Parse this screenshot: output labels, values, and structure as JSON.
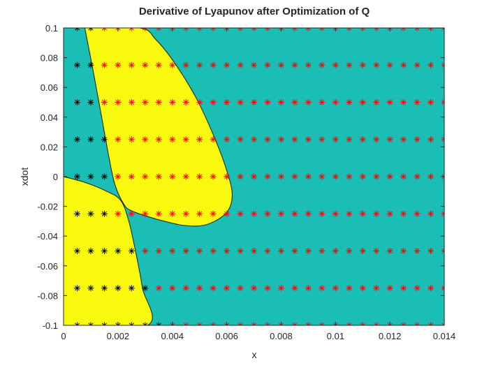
{
  "chart_data": {
    "type": "scatter",
    "title": "Derivative of Lyapunov after Optimization of Q",
    "xlabel": "x",
    "ylabel": "xdot",
    "xlim": [
      0,
      0.014
    ],
    "ylim": [
      -0.1,
      0.1
    ],
    "xticks": [
      "0",
      "0.002",
      "0.004",
      "0.006",
      "0.008",
      "0.01",
      "0.012",
      "0.014"
    ],
    "yticks": [
      "-0.1",
      "-0.08",
      "-0.06",
      "-0.04",
      "-0.02",
      "0",
      "0.02",
      "0.04",
      "0.06",
      "0.08",
      "0.1"
    ],
    "grid": false,
    "legend": "none",
    "background_region_color": "#1ABEB4",
    "highlight_region_color": "#F9F90F",
    "marker": "*",
    "colors": {
      "black_markers": "#000000",
      "red_markers": "#FF0000"
    },
    "x_grid": [
      0,
      0.0005,
      0.001,
      0.0015,
      0.002,
      0.0025,
      0.003,
      0.0035,
      0.004,
      0.0045,
      0.005,
      0.0055,
      0.006,
      0.0065,
      0.007,
      0.0075,
      0.008,
      0.0085,
      0.009,
      0.0095,
      0.01,
      0.0105,
      0.011,
      0.0115,
      0.012,
      0.0125,
      0.013,
      0.0135,
      0.014
    ],
    "y_grid": [
      -0.1,
      -0.075,
      -0.05,
      -0.025,
      0,
      0.025,
      0.05,
      0.075,
      0.1
    ],
    "black_marker_count_by_row": {
      "-0.1": 7,
      "-0.075": 6,
      "-0.05": 5,
      "-0.025": 3,
      "0": 3,
      "0.025": 3,
      "0.05": 2,
      "0.075": 2,
      "0.1": 2
    },
    "regions": [
      {
        "name": "upper-yellow-region",
        "boundary": [
          [
            0.00078,
            0.1
          ],
          [
            0.0028,
            0.1
          ],
          [
            0.0034,
            0.092
          ],
          [
            0.0041,
            0.076
          ],
          [
            0.0049,
            0.052
          ],
          [
            0.0056,
            0.024
          ],
          [
            0.006,
            0.004
          ],
          [
            0.0062,
            -0.012
          ],
          [
            0.006,
            -0.024
          ],
          [
            0.0053,
            -0.032
          ],
          [
            0.0045,
            -0.033
          ],
          [
            0.0035,
            -0.029
          ],
          [
            0.0025,
            -0.023
          ],
          [
            0.0022,
            -0.018
          ],
          [
            0.0019,
            -0.006
          ],
          [
            0.0017,
            0.01
          ],
          [
            0.0014,
            0.04
          ],
          [
            0.0011,
            0.07
          ],
          [
            0.00078,
            0.1
          ]
        ]
      },
      {
        "name": "lower-yellow-region",
        "boundary": [
          [
            0,
            0.0
          ],
          [
            0.0008,
            -0.004
          ],
          [
            0.0016,
            -0.01
          ],
          [
            0.0021,
            -0.016
          ],
          [
            0.0024,
            -0.03
          ],
          [
            0.0027,
            -0.055
          ],
          [
            0.0029,
            -0.075
          ],
          [
            0.00308,
            -0.1
          ],
          [
            0,
            -0.1
          ]
        ]
      }
    ]
  }
}
